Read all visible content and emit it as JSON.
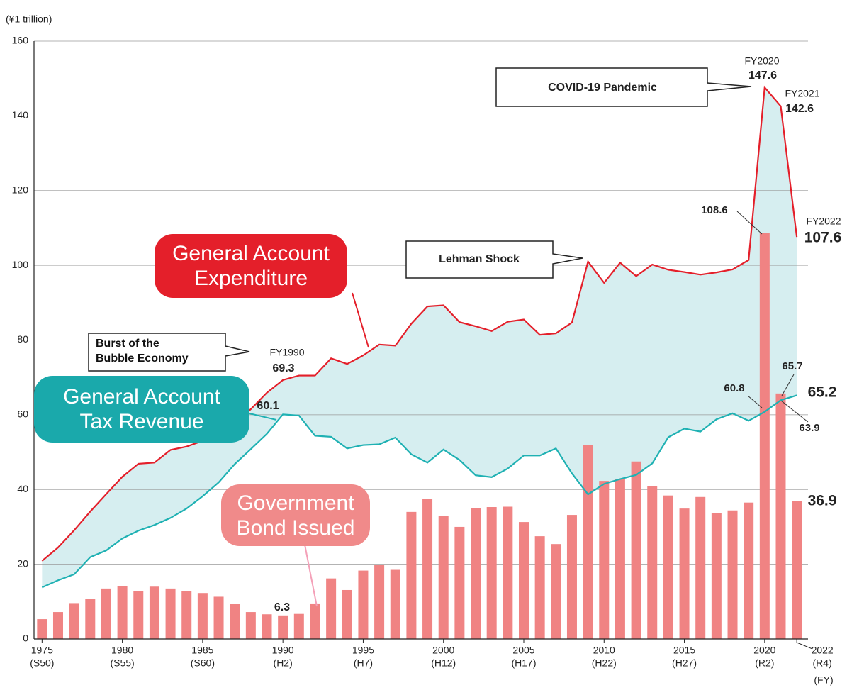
{
  "chart_data": {
    "type": "combo",
    "y_unit": "(¥1 trillion)",
    "x_unit": "(FY)",
    "x": [
      1975,
      1976,
      1977,
      1978,
      1979,
      1980,
      1981,
      1982,
      1983,
      1984,
      1985,
      1986,
      1987,
      1988,
      1989,
      1990,
      1991,
      1992,
      1993,
      1994,
      1995,
      1996,
      1997,
      1998,
      1999,
      2000,
      2001,
      2002,
      2003,
      2004,
      2005,
      2006,
      2007,
      2008,
      2009,
      2010,
      2011,
      2012,
      2013,
      2014,
      2015,
      2016,
      2017,
      2018,
      2019,
      2020,
      2021,
      2022
    ],
    "xlim": [
      1974.5,
      2022.7
    ],
    "xticks": [
      1975,
      1980,
      1985,
      1990,
      1995,
      2000,
      2005,
      2010,
      2015,
      2020,
      2022
    ],
    "xtick_sublabels": [
      "(S50)",
      "(S55)",
      "(S60)",
      "(H2)",
      "(H7)",
      "(H12)",
      "(H17)",
      "(H22)",
      "(H27)",
      "(R2)",
      "(R4)"
    ],
    "ylim": [
      0,
      160
    ],
    "yticks": [
      0,
      20,
      40,
      60,
      80,
      100,
      120,
      140,
      160
    ],
    "grid": true,
    "series": [
      {
        "name": "General Account Expenditure",
        "type": "line",
        "color": "#e41f2a",
        "values": [
          20.9,
          24.5,
          29.1,
          34.1,
          38.8,
          43.4,
          46.9,
          47.2,
          50.6,
          51.5,
          53.0,
          53.6,
          57.7,
          61.5,
          65.9,
          69.3,
          70.5,
          70.5,
          75.1,
          73.6,
          75.9,
          78.8,
          78.5,
          84.4,
          89.0,
          89.3,
          84.8,
          83.7,
          82.4,
          84.9,
          85.5,
          81.4,
          81.8,
          84.7,
          101.0,
          95.3,
          100.7,
          97.1,
          100.2,
          98.8,
          98.2,
          97.5,
          98.1,
          98.9,
          101.4,
          147.6,
          142.6,
          107.6
        ]
      },
      {
        "name": "General Account Tax Revenue",
        "type": "line",
        "color": "#1fb1b3",
        "values": [
          13.8,
          15.7,
          17.3,
          21.9,
          23.7,
          26.9,
          29.0,
          30.5,
          32.4,
          34.9,
          38.2,
          41.9,
          46.8,
          50.8,
          54.9,
          60.1,
          59.8,
          54.4,
          54.1,
          51.0,
          51.9,
          52.1,
          53.9,
          49.4,
          47.2,
          50.7,
          47.9,
          43.8,
          43.3,
          45.6,
          49.1,
          49.1,
          51.0,
          44.3,
          38.7,
          41.5,
          42.8,
          43.9,
          47.0,
          54.0,
          56.3,
          55.5,
          58.8,
          60.4,
          58.4,
          60.8,
          63.9,
          65.2
        ]
      },
      {
        "name": "Government Bond Issued",
        "type": "bar",
        "color": "#f08383",
        "values": [
          5.3,
          7.2,
          9.6,
          10.7,
          13.5,
          14.2,
          12.9,
          14.0,
          13.5,
          12.8,
          12.3,
          11.3,
          9.4,
          7.2,
          6.6,
          6.3,
          6.7,
          9.5,
          16.2,
          13.1,
          18.3,
          19.8,
          18.5,
          34.0,
          37.5,
          33.0,
          30.0,
          35.0,
          35.3,
          35.4,
          31.3,
          27.5,
          25.4,
          33.2,
          52.0,
          42.3,
          42.8,
          47.5,
          40.9,
          38.4,
          34.9,
          38.0,
          33.6,
          34.4,
          36.5,
          108.6,
          65.7,
          36.9
        ]
      }
    ],
    "annotations": [
      "Burst of the Bubble Economy",
      "Lehman Shock",
      "COVID-19 Pandemic"
    ],
    "fy_labels": [
      "FY1990",
      "FY2020",
      "FY2021",
      "FY2022"
    ]
  }
}
